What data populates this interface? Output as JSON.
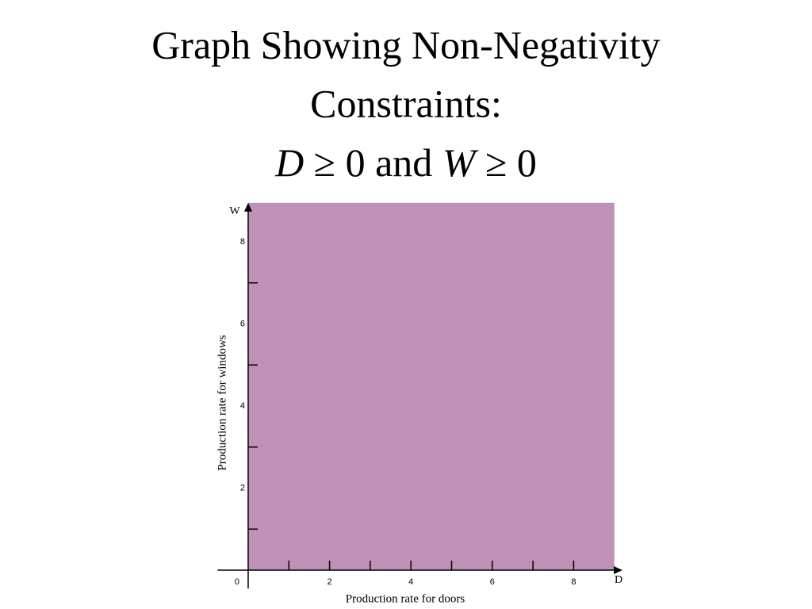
{
  "chart_data": {
    "type": "region",
    "title_lines": [
      "Graph Showing Non-Negativity",
      "Constraints:"
    ],
    "subtitle_parts": [
      "D",
      " ≥ 0 and ",
      "W",
      " ≥ 0"
    ],
    "x_name": "D",
    "y_name": "W",
    "xlabel": "Production rate for doors",
    "ylabel": "Production rate for windows",
    "region": {
      "x": [
        0,
        9
      ],
      "y": [
        0,
        8.95
      ]
    },
    "color": "#bf91b8",
    "xlim": [
      -0.75,
      9.2
    ],
    "ylim": [
      -0.45,
      8.95
    ],
    "xticks": [
      0,
      2,
      4,
      6,
      8
    ],
    "x_minor_ticks": [
      1,
      3,
      5,
      7
    ],
    "yticks": [
      2,
      4,
      6,
      8
    ],
    "y_minor_ticks": [
      1,
      3,
      5,
      7
    ]
  }
}
